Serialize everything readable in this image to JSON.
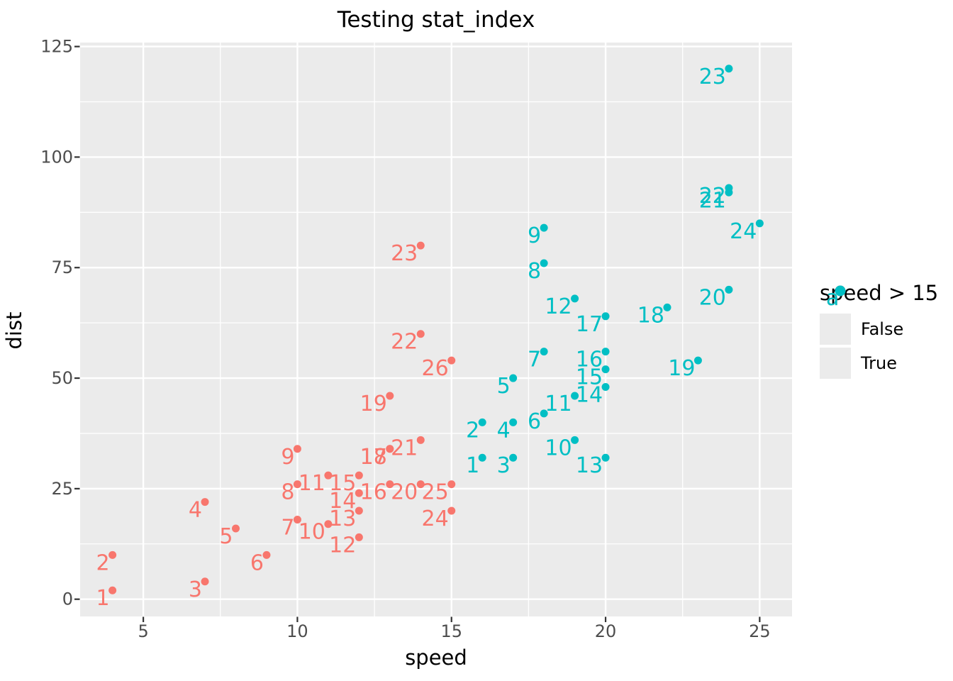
{
  "legend": {
    "title": "speed > 15",
    "key_glyph": "a",
    "entries": [
      {
        "label": "False",
        "color": "#F8766D"
      },
      {
        "label": "True",
        "color": "#00BFC4"
      }
    ]
  },
  "chart_data": {
    "type": "scatter",
    "title": "Testing stat_index",
    "xlabel": "speed",
    "ylabel": "dist",
    "xlim": [
      2.95,
      26.05
    ],
    "ylim": [
      -3.9,
      125.9
    ],
    "x_major_ticks": [
      5,
      10,
      15,
      20,
      25
    ],
    "x_minor_ticks": [
      7.5,
      12.5,
      17.5,
      22.5
    ],
    "y_major_ticks": [
      0,
      25,
      50,
      75,
      100,
      125
    ],
    "y_minor_ticks": [
      12.5,
      37.5,
      62.5,
      87.5,
      112.5
    ],
    "panel_background": "#EBEBEB",
    "grid_color": "#FFFFFF",
    "tick_label_color": "#4D4D4D",
    "tick_mark_color": "#333333",
    "legend_position": "right",
    "series": [
      {
        "name": "False",
        "color": "#F8766D",
        "points": [
          {
            "x": 4,
            "y": 2,
            "label": "1"
          },
          {
            "x": 4,
            "y": 10,
            "label": "2"
          },
          {
            "x": 7,
            "y": 4,
            "label": "3"
          },
          {
            "x": 7,
            "y": 22,
            "label": "4"
          },
          {
            "x": 8,
            "y": 16,
            "label": "5"
          },
          {
            "x": 9,
            "y": 10,
            "label": "6"
          },
          {
            "x": 10,
            "y": 18,
            "label": "7"
          },
          {
            "x": 10,
            "y": 26,
            "label": "8"
          },
          {
            "x": 10,
            "y": 34,
            "label": "9"
          },
          {
            "x": 11,
            "y": 17,
            "label": "10"
          },
          {
            "x": 11,
            "y": 28,
            "label": "11"
          },
          {
            "x": 12,
            "y": 14,
            "label": "12"
          },
          {
            "x": 12,
            "y": 20,
            "label": "13"
          },
          {
            "x": 12,
            "y": 24,
            "label": "14"
          },
          {
            "x": 12,
            "y": 28,
            "label": "15"
          },
          {
            "x": 13,
            "y": 26,
            "label": "16"
          },
          {
            "x": 13,
            "y": 34,
            "label": "17"
          },
          {
            "x": 13,
            "y": 34,
            "label": "18"
          },
          {
            "x": 13,
            "y": 46,
            "label": "19"
          },
          {
            "x": 14,
            "y": 26,
            "label": "20"
          },
          {
            "x": 14,
            "y": 36,
            "label": "21"
          },
          {
            "x": 14,
            "y": 60,
            "label": "22"
          },
          {
            "x": 14,
            "y": 80,
            "label": "23"
          },
          {
            "x": 15,
            "y": 20,
            "label": "24"
          },
          {
            "x": 15,
            "y": 26,
            "label": "25"
          },
          {
            "x": 15,
            "y": 54,
            "label": "26"
          }
        ]
      },
      {
        "name": "True",
        "color": "#00BFC4",
        "points": [
          {
            "x": 16,
            "y": 32,
            "label": "1"
          },
          {
            "x": 16,
            "y": 40,
            "label": "2"
          },
          {
            "x": 17,
            "y": 32,
            "label": "3"
          },
          {
            "x": 17,
            "y": 40,
            "label": "4"
          },
          {
            "x": 17,
            "y": 50,
            "label": "5"
          },
          {
            "x": 18,
            "y": 42,
            "label": "6"
          },
          {
            "x": 18,
            "y": 56,
            "label": "7"
          },
          {
            "x": 18,
            "y": 76,
            "label": "8"
          },
          {
            "x": 18,
            "y": 84,
            "label": "9"
          },
          {
            "x": 19,
            "y": 36,
            "label": "10"
          },
          {
            "x": 19,
            "y": 46,
            "label": "11"
          },
          {
            "x": 19,
            "y": 68,
            "label": "12"
          },
          {
            "x": 20,
            "y": 32,
            "label": "13"
          },
          {
            "x": 20,
            "y": 48,
            "label": "14"
          },
          {
            "x": 20,
            "y": 52,
            "label": "15"
          },
          {
            "x": 20,
            "y": 56,
            "label": "16"
          },
          {
            "x": 20,
            "y": 64,
            "label": "17"
          },
          {
            "x": 22,
            "y": 66,
            "label": "18"
          },
          {
            "x": 23,
            "y": 54,
            "label": "19"
          },
          {
            "x": 24,
            "y": 70,
            "label": "20"
          },
          {
            "x": 24,
            "y": 92,
            "label": "21"
          },
          {
            "x": 24,
            "y": 93,
            "label": "22"
          },
          {
            "x": 24,
            "y": 120,
            "label": "23"
          },
          {
            "x": 25,
            "y": 85,
            "label": "24"
          }
        ]
      }
    ]
  }
}
